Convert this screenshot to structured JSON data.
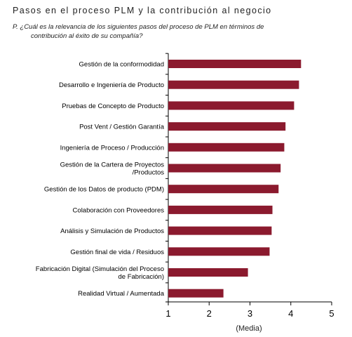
{
  "header": {
    "title": "Pasos en el proceso PLM y la contribución al negocio",
    "question_line1": "P. ¿Cuál es la relevancia de los siguientes pasos del proceso de PLM en términos de",
    "question_line2": "contribución al éxito de su compañía?"
  },
  "chart_data": {
    "type": "bar",
    "orientation": "horizontal",
    "categories": [
      "Gestión de la conformodidad",
      "Desarrollo e Ingeniería de Producto",
      "Pruebas de Concepto de Producto",
      "Post Vent / Gestión Garantía",
      "Ingeniería de Proceso / Producción",
      "Gestión de la Cartera de Proyectos /Productos",
      "Gestión de los Datos de producto (PDM)",
      "Colaboración con Proveedores",
      "Análisis y Simulación de Productos",
      "Gestión final de vida / Residuos",
      "Fabricación Digital (Simulación del Proceso de Fabricación)",
      "Realidad Virtual / Aumentada"
    ],
    "category_lines": [
      [
        "Gestión de la conformodidad"
      ],
      [
        "Desarrollo e Ingeniería de Producto"
      ],
      [
        "Pruebas de Concepto de Producto"
      ],
      [
        "Post Vent / Gestión Garantía"
      ],
      [
        "Ingeniería de Proceso / Producción"
      ],
      [
        "Gestión de la Cartera de Proyectos",
        "/Productos"
      ],
      [
        "Gestión de los Datos de producto (PDM)"
      ],
      [
        "Colaboración con Proveedores"
      ],
      [
        "Análisis y Simulación de Productos"
      ],
      [
        "Gestión final de vida / Residuos"
      ],
      [
        "Fabricación Digital (Simulación del Proceso",
        "de Fabricación)"
      ],
      [
        "Realidad Virtual / Aumentada"
      ]
    ],
    "values": [
      4.25,
      4.2,
      4.08,
      3.87,
      3.84,
      3.75,
      3.7,
      3.55,
      3.53,
      3.48,
      2.95,
      2.35
    ],
    "xlabel": "(Media)",
    "xlim": [
      1,
      5
    ],
    "xticks": [
      "1",
      "2",
      "3",
      "4",
      "5"
    ],
    "bar_color": "#8b1a2e",
    "grid": false
  }
}
